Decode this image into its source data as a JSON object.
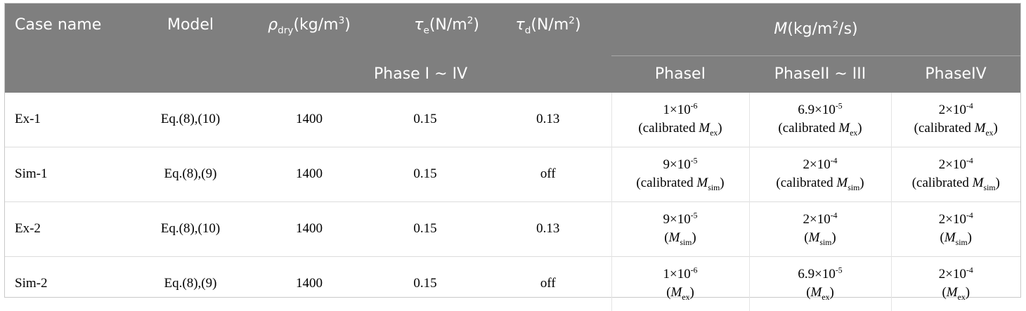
{
  "header": {
    "case_name": "Case name",
    "model": "Model",
    "rho": {
      "symbol": "ρ",
      "sub": "dry",
      "unit": "(kg/m",
      "unit_sup": "3",
      "unit_close": ")"
    },
    "tau_e": {
      "symbol": "τ",
      "sub": "e",
      "unit": "(N/m",
      "unit_sup": "2",
      "unit_close": ")"
    },
    "tau_d": {
      "symbol": "τ",
      "sub": "d",
      "unit": "(N/m",
      "unit_sup": "2",
      "unit_close": ")"
    },
    "m": {
      "symbol": "M",
      "unit": "(kg/m",
      "unit_sup": "2",
      "unit_close": "/s)"
    },
    "phase_tau": "Phase I ~ IV",
    "phase1": "PhaseI",
    "phase2": "PhaseII ~ III",
    "phase3": "PhaseIV"
  },
  "rows": [
    {
      "case": "Ex-1",
      "model": "Eq.(8),(10)",
      "rho": "1400",
      "tau_e": "0.15",
      "tau_d": "0.13",
      "m1": {
        "coef": "1×10",
        "exp": "-6",
        "pre": "(calibrated ",
        "sym": "M",
        "sub": "ex",
        "post": ")"
      },
      "m2": {
        "coef": "6.9×10",
        "exp": "-5",
        "pre": "(calibrated ",
        "sym": "M",
        "sub": "ex",
        "post": ")"
      },
      "m3": {
        "coef": "2×10",
        "exp": "-4",
        "pre": "(calibrated ",
        "sym": "M",
        "sub": "ex",
        "post": ")"
      }
    },
    {
      "case": "Sim-1",
      "model": "Eq.(8),(9)",
      "rho": "1400",
      "tau_e": "0.15",
      "tau_d": "off",
      "m1": {
        "coef": "9×10",
        "exp": "-5",
        "pre": "(calibrated ",
        "sym": "M",
        "sub": "sim",
        "post": ")"
      },
      "m2": {
        "coef": "2×10",
        "exp": "-4",
        "pre": "(calibrated ",
        "sym": "M",
        "sub": "sim",
        "post": ")"
      },
      "m3": {
        "coef": "2×10",
        "exp": "-4",
        "pre": "(calibrated ",
        "sym": "M",
        "sub": "sim",
        "post": ")"
      }
    },
    {
      "case": "Ex-2",
      "model": "Eq.(8),(10)",
      "rho": "1400",
      "tau_e": "0.15",
      "tau_d": "0.13",
      "m1": {
        "coef": "9×10",
        "exp": "-5",
        "pre": "(",
        "sym": "M",
        "sub": "sim",
        "post": ")"
      },
      "m2": {
        "coef": "2×10",
        "exp": "-4",
        "pre": "(",
        "sym": "M",
        "sub": "sim",
        "post": ")"
      },
      "m3": {
        "coef": "2×10",
        "exp": "-4",
        "pre": "(",
        "sym": "M",
        "sub": "sim",
        "post": ")"
      }
    },
    {
      "case": "Sim-2",
      "model": "Eq.(8),(9)",
      "rho": "1400",
      "tau_e": "0.15",
      "tau_d": "off",
      "m1": {
        "coef": "1×10",
        "exp": "-6",
        "pre": "(",
        "sym": "M",
        "sub": "ex",
        "post": ")"
      },
      "m2": {
        "coef": "6.9×10",
        "exp": "-5",
        "pre": "(",
        "sym": "M",
        "sub": "ex",
        "post": ")"
      },
      "m3": {
        "coef": "2×10",
        "exp": "-4",
        "pre": "(",
        "sym": "M",
        "sub": "ex",
        "post": ")"
      }
    }
  ]
}
